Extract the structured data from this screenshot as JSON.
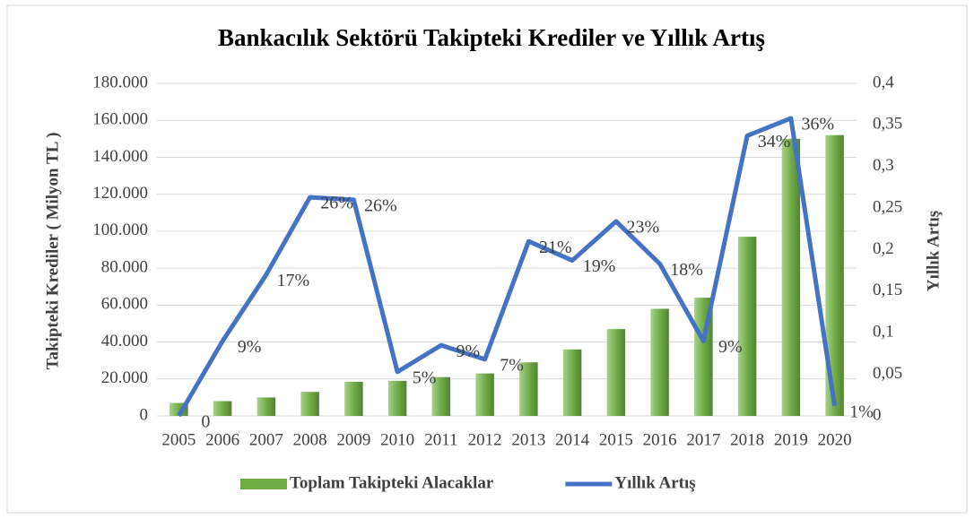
{
  "chart_data": {
    "type": "bar+line",
    "title": "Bankacılık Sektörü Takipteki Krediler ve Yıllık Artış",
    "ylabel": "Takipteki Krediler ( Milyon TL )",
    "y2label": "Yıllık Artış",
    "categories": [
      "2005",
      "2006",
      "2007",
      "2008",
      "2009",
      "2010",
      "2011",
      "2012",
      "2013",
      "2014",
      "2015",
      "2016",
      "2017",
      "2018",
      "2019",
      "2020"
    ],
    "series": [
      {
        "name": "Toplam Takipteki Alacaklar",
        "type": "bar",
        "color": "#70ad47",
        "values": [
          7000,
          8000,
          10000,
          13000,
          18500,
          19000,
          21000,
          23000,
          29000,
          36000,
          47000,
          58000,
          64000,
          97000,
          150000,
          152000
        ]
      },
      {
        "name": "Yıllık Artış",
        "type": "line",
        "axis": "y2",
        "color": "#4472c4",
        "values": [
          0,
          0.09,
          0.17,
          0.263,
          0.26,
          0.053,
          0.085,
          0.068,
          0.21,
          0.187,
          0.234,
          0.183,
          0.09,
          0.337,
          0.358,
          0.012
        ],
        "value_labels": [
          "0",
          "9%",
          "17%",
          "26%",
          "26%",
          "5%",
          "9%",
          "7%",
          "21%",
          "19%",
          "23%",
          "18%",
          "9%",
          "34%",
          "36%",
          "1%"
        ]
      }
    ],
    "ylim": [
      0,
      180000
    ],
    "yticks": [
      0,
      {
        "value": 20000,
        "label": "20.000"
      },
      {
        "value": 40000,
        "label": "40.000"
      },
      {
        "value": 60000,
        "label": "60.000"
      },
      {
        "value": 80000,
        "label": "80.000"
      },
      {
        "value": 100000,
        "label": "100.000"
      },
      {
        "value": 120000,
        "label": "120.000"
      },
      {
        "value": 140000,
        "label": "140.000"
      },
      {
        "value": 160000,
        "label": "160.000"
      },
      {
        "value": 180000,
        "label": "180.000"
      }
    ],
    "y2lim": [
      0,
      0.4
    ],
    "y2ticks": [
      0,
      {
        "value": 0.05,
        "label": "0,05"
      },
      {
        "value": 0.1,
        "label": "0,1"
      },
      {
        "value": 0.15,
        "label": "0,15"
      },
      {
        "value": 0.2,
        "label": "0,2"
      },
      {
        "value": 0.25,
        "label": "0,25"
      },
      {
        "value": 0.3,
        "label": "0,3"
      },
      {
        "value": 0.35,
        "label": "0,35"
      },
      {
        "value": 0.4,
        "label": "0,4"
      }
    ],
    "grid": true,
    "legend": "bottom"
  }
}
